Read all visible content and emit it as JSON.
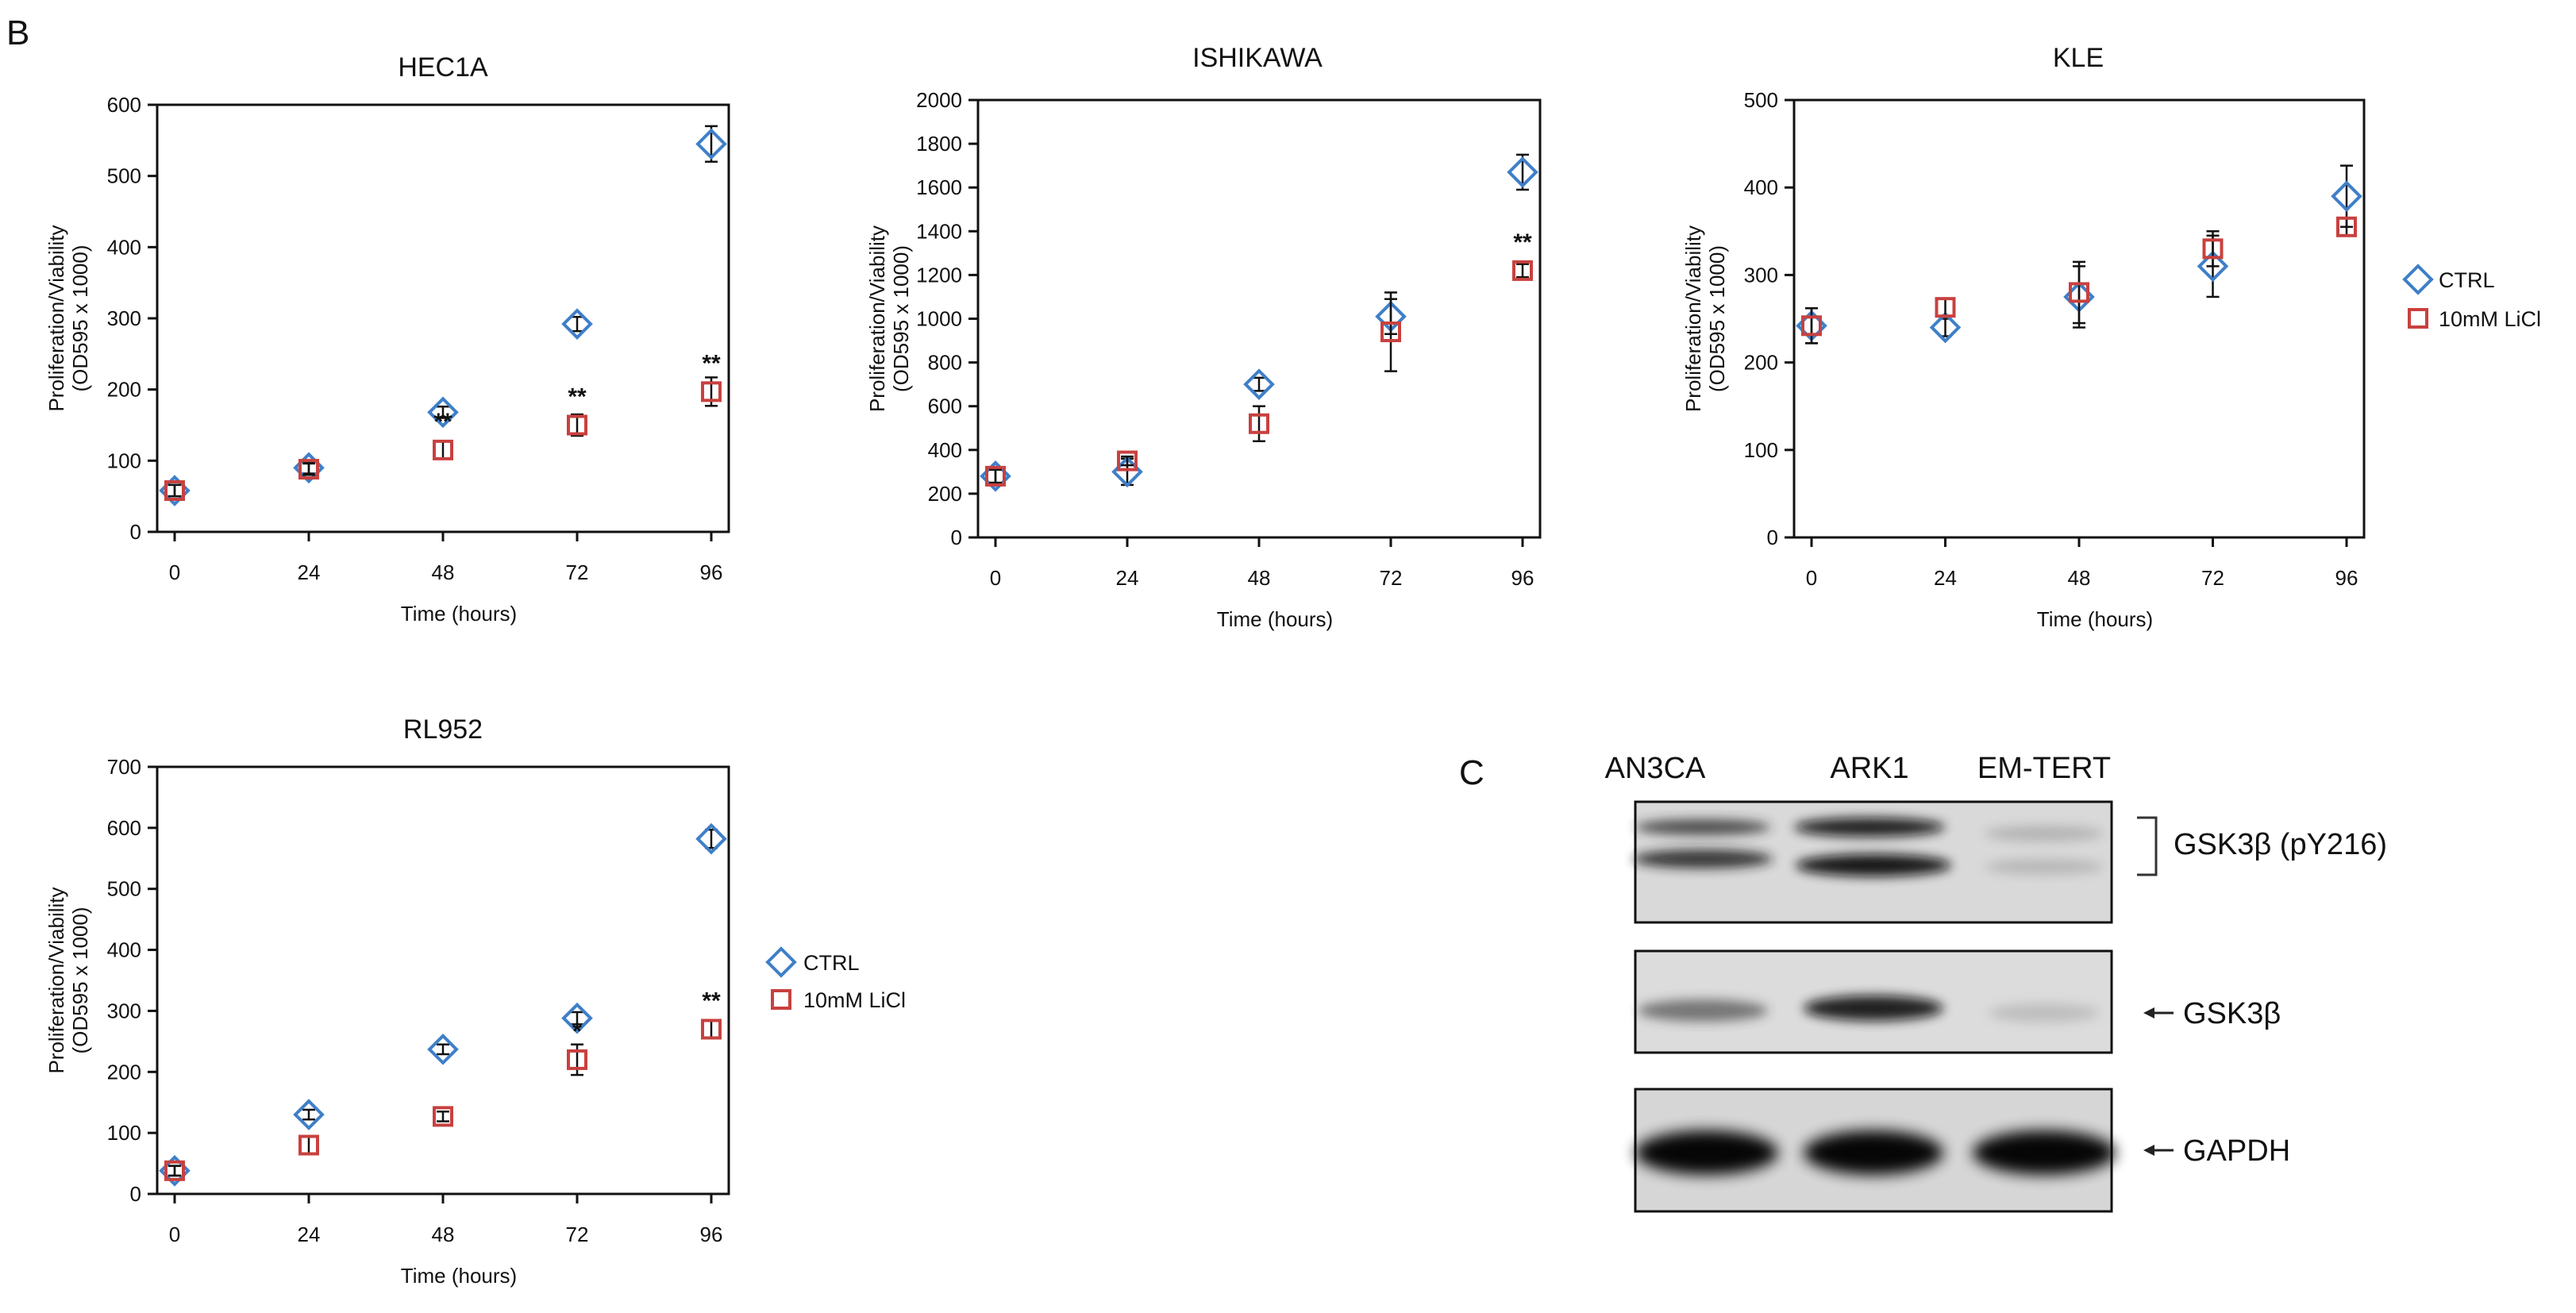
{
  "panels": {
    "b_label": "B",
    "c_label": "C"
  },
  "legend": {
    "ctrl_label": "CTRL",
    "licl_label": "10mM LiCl",
    "ctrl_color": "#3f7fc8",
    "licl_color": "#c8413f"
  },
  "chart_data": [
    {
      "type": "scatter",
      "title": "HEC1A",
      "xlabel": "Time (hours)",
      "ylabel": "Proliferation/Viability",
      "ylabel2": "(OD595 x 1000)",
      "x": [
        0,
        24,
        48,
        72,
        96
      ],
      "xlim": [
        0,
        96
      ],
      "ylim": [
        0,
        600
      ],
      "yticks": [
        0,
        100,
        200,
        300,
        400,
        500,
        600
      ],
      "series": [
        {
          "name": "CTRL",
          "marker": "diamond",
          "values": [
            58,
            90,
            168,
            292,
            545
          ],
          "errors": [
            8,
            8,
            8,
            10,
            25
          ]
        },
        {
          "name": "10mM LiCl",
          "marker": "square",
          "values": [
            58,
            88,
            115,
            150,
            197
          ],
          "errors": [
            8,
            8,
            12,
            15,
            20
          ]
        }
      ],
      "annotations": [
        {
          "x": 48,
          "y": 115,
          "text": "**"
        },
        {
          "x": 72,
          "y": 150,
          "text": "**"
        },
        {
          "x": 96,
          "y": 197,
          "text": "**"
        }
      ]
    },
    {
      "type": "scatter",
      "title": "ISHIKAWA",
      "xlabel": "Time (hours)",
      "ylabel": "Proliferation/Viability",
      "ylabel2": "(OD595 x 1000)",
      "x": [
        0,
        24,
        48,
        72,
        96
      ],
      "xlim": [
        0,
        96
      ],
      "ylim": [
        0,
        2000
      ],
      "yticks": [
        0,
        200,
        400,
        600,
        800,
        1000,
        1200,
        1400,
        1600,
        1800,
        2000
      ],
      "series": [
        {
          "name": "CTRL",
          "marker": "diamond",
          "values": [
            280,
            300,
            700,
            1010,
            1670
          ],
          "errors": [
            30,
            60,
            30,
            80,
            80
          ]
        },
        {
          "name": "10mM LiCl",
          "marker": "square",
          "values": [
            280,
            350,
            520,
            940,
            1220
          ],
          "errors": [
            30,
            20,
            80,
            180,
            30
          ]
        }
      ],
      "annotations": [
        {
          "x": 96,
          "y": 1220,
          "text": "**"
        }
      ]
    },
    {
      "type": "scatter",
      "title": "KLE",
      "xlabel": "Time (hours)",
      "ylabel": "Proliferation/Viability",
      "ylabel2": "(OD595 x 1000)",
      "x": [
        0,
        24,
        48,
        72,
        96
      ],
      "xlim": [
        0,
        96
      ],
      "ylim": [
        0,
        500
      ],
      "yticks": [
        0,
        100,
        200,
        300,
        400,
        500
      ],
      "series": [
        {
          "name": "CTRL",
          "marker": "diamond",
          "values": [
            242,
            240,
            275,
            310,
            390
          ],
          "errors": [
            20,
            10,
            35,
            35,
            35
          ]
        },
        {
          "name": "10mM LiCl",
          "marker": "square",
          "values": [
            242,
            263,
            280,
            330,
            355
          ],
          "errors": [
            20,
            10,
            35,
            20,
            10
          ]
        }
      ],
      "annotations": []
    },
    {
      "type": "scatter",
      "title": "RL952",
      "xlabel": "Time (hours)",
      "ylabel": "Proliferation/Viability",
      "ylabel2": "(OD595 x 1000)",
      "x": [
        0,
        24,
        48,
        72,
        96
      ],
      "xlim": [
        0,
        96
      ],
      "ylim": [
        0,
        700
      ],
      "yticks": [
        0,
        100,
        200,
        300,
        400,
        500,
        600,
        700
      ],
      "series": [
        {
          "name": "CTRL",
          "marker": "diamond",
          "values": [
            38,
            130,
            237,
            288,
            582
          ],
          "errors": [
            8,
            8,
            8,
            10,
            15
          ]
        },
        {
          "name": "10mM LiCl",
          "marker": "square",
          "values": [
            38,
            80,
            127,
            220,
            270
          ],
          "errors": [
            8,
            15,
            8,
            25,
            15
          ]
        }
      ],
      "annotations": [
        {
          "x": 72,
          "y": 220,
          "text": "*"
        },
        {
          "x": 96,
          "y": 270,
          "text": "**"
        }
      ]
    }
  ],
  "blot": {
    "lanes": [
      "AN3CA",
      "ARK1",
      "EM-TERT"
    ],
    "bands": [
      {
        "label": "GSK3β (pY216)",
        "intensity": [
          0.85,
          0.95,
          0.25
        ]
      },
      {
        "label": "GSK3β",
        "intensity": [
          0.55,
          0.85,
          0.2
        ]
      },
      {
        "label": "GAPDH",
        "intensity": [
          0.97,
          0.97,
          0.97
        ]
      }
    ]
  }
}
